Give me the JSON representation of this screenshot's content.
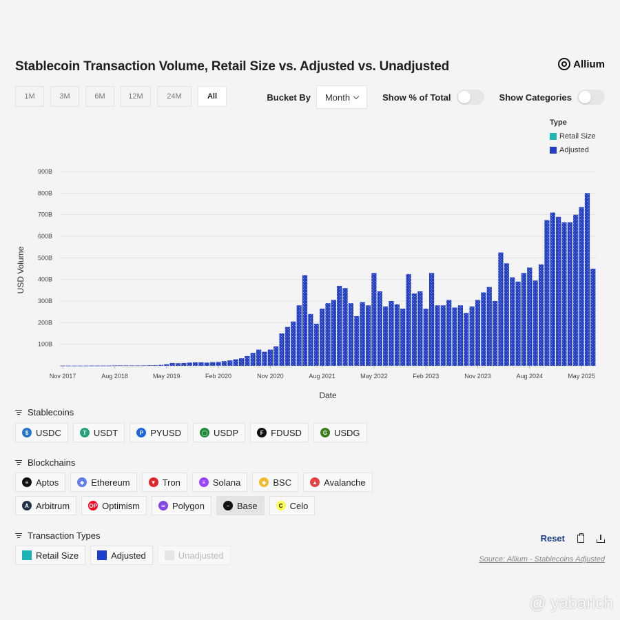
{
  "header": {
    "title": "Stablecoin Transaction Volume, Retail Size vs. Adjusted vs. Unadjusted",
    "brand": "Allium"
  },
  "ranges": [
    {
      "label": "1M",
      "selected": false
    },
    {
      "label": "3M",
      "selected": false
    },
    {
      "label": "6M",
      "selected": false
    },
    {
      "label": "12M",
      "selected": false
    },
    {
      "label": "24M",
      "selected": false
    },
    {
      "label": "All",
      "selected": true
    }
  ],
  "controls": {
    "bucket_label": "Bucket By",
    "bucket_value": "Month",
    "show_pct_label": "Show % of Total",
    "show_pct_on": false,
    "show_cat_label": "Show Categories",
    "show_cat_on": false
  },
  "legend": {
    "title": "Type",
    "items": [
      {
        "label": "Retail Size",
        "color": "#22b5b8"
      },
      {
        "label": "Adjusted",
        "color": "#2340c4"
      }
    ]
  },
  "chart_data": {
    "type": "bar",
    "xlabel": "Date",
    "ylabel": "USD Volume",
    "ylim": [
      0,
      900
    ],
    "y_ticks": [
      "100B",
      "200B",
      "300B",
      "400B",
      "500B",
      "600B",
      "700B",
      "800B",
      "900B"
    ],
    "x_tick_labels": [
      "Nov 2017",
      "Aug 2018",
      "May 2019",
      "Feb 2020",
      "Nov 2020",
      "Aug 2021",
      "May 2022",
      "Feb 2023",
      "Nov 2023",
      "Aug 2024",
      "May 2025"
    ],
    "x_tick_index": [
      0,
      9,
      18,
      27,
      36,
      45,
      54,
      63,
      72,
      81,
      90
    ],
    "start_month": "Nov 2017",
    "series": [
      {
        "name": "Adjusted",
        "color": "#2340c4",
        "values": [
          1,
          1,
          1,
          1,
          1,
          1,
          1,
          1,
          1,
          2,
          2,
          2,
          2,
          2,
          2,
          3,
          3,
          4,
          7,
          13,
          12,
          13,
          15,
          16,
          16,
          15,
          17,
          18,
          22,
          25,
          30,
          35,
          45,
          60,
          75,
          65,
          75,
          90,
          150,
          180,
          205,
          280,
          420,
          240,
          195,
          265,
          290,
          305,
          370,
          360,
          290,
          230,
          295,
          280,
          430,
          345,
          275,
          300,
          285,
          265,
          425,
          335,
          345,
          265,
          430,
          280,
          280,
          305,
          270,
          280,
          245,
          275,
          305,
          340,
          365,
          300,
          525,
          475,
          410,
          390,
          430,
          455,
          395,
          470,
          675,
          710,
          690,
          665,
          665,
          700,
          735,
          800,
          450
        ]
      },
      {
        "name": "Retail Size",
        "color": "#22b5b8",
        "values": [
          0,
          0,
          0,
          0,
          0,
          0,
          0,
          0,
          0,
          0,
          0,
          0,
          0,
          0,
          0,
          0,
          0,
          0,
          0,
          0,
          0,
          0,
          0,
          0,
          0,
          0,
          0,
          0,
          0,
          0,
          0,
          0,
          0,
          0,
          0,
          0,
          0,
          0,
          0,
          0,
          0,
          0,
          0,
          0,
          0,
          0,
          0,
          0,
          0,
          0,
          0,
          0,
          0,
          0,
          0,
          0,
          0,
          0,
          0,
          0,
          0,
          0,
          0,
          0,
          0,
          0,
          0,
          0,
          0,
          0,
          0,
          0,
          0,
          0,
          0,
          0,
          0,
          0,
          0,
          0,
          0,
          0,
          0,
          0,
          0,
          0,
          0,
          0,
          0,
          0,
          0,
          0,
          0
        ]
      }
    ],
    "grid": true,
    "legend_position": "top-right"
  },
  "filters": {
    "stablecoins": {
      "title": "Stablecoins",
      "items": [
        {
          "label": "USDC",
          "icon": "usdc-icon",
          "color": "#2775ca",
          "glyph": "$"
        },
        {
          "label": "USDT",
          "icon": "usdt-icon",
          "color": "#26a17b",
          "glyph": "T"
        },
        {
          "label": "PYUSD",
          "icon": "pyusd-icon",
          "color": "#1c66e0",
          "glyph": "P"
        },
        {
          "label": "USDP",
          "icon": "usdp-icon",
          "color": "#1f8a3a",
          "glyph": "◯"
        },
        {
          "label": "FDUSD",
          "icon": "fdusd-icon",
          "color": "#111111",
          "glyph": "F"
        },
        {
          "label": "USDG",
          "icon": "usdg-icon",
          "color": "#3a7d1e",
          "glyph": "G"
        }
      ]
    },
    "blockchains": {
      "title": "Blockchains",
      "row1": [
        {
          "label": "Aptos",
          "icon": "aptos-icon",
          "color": "#111111",
          "glyph": "≡"
        },
        {
          "label": "Ethereum",
          "icon": "ethereum-icon",
          "color": "#627eea",
          "glyph": "◆"
        },
        {
          "label": "Tron",
          "icon": "tron-icon",
          "color": "#e0262b",
          "glyph": "▼"
        },
        {
          "label": "Solana",
          "icon": "solana-icon",
          "color": "#9945ff",
          "glyph": "≡"
        },
        {
          "label": "BSC",
          "icon": "bsc-icon",
          "color": "#f3ba2f",
          "glyph": "◆"
        },
        {
          "label": "Avalanche",
          "icon": "avalanche-icon",
          "color": "#e84142",
          "glyph": "▲"
        }
      ],
      "row2": [
        {
          "label": "Arbitrum",
          "icon": "arbitrum-icon",
          "color": "#213147",
          "glyph": "A"
        },
        {
          "label": "Optimism",
          "icon": "optimism-icon",
          "color": "#ff0420",
          "glyph": "OP"
        },
        {
          "label": "Polygon",
          "icon": "polygon-icon",
          "color": "#8247e5",
          "glyph": "∞"
        },
        {
          "label": "Base",
          "icon": "base-icon",
          "color": "#111111",
          "glyph": "–",
          "active": true
        },
        {
          "label": "Celo",
          "icon": "celo-icon",
          "color": "#fcff52",
          "glyph": "C"
        }
      ]
    },
    "types": {
      "title": "Transaction Types",
      "items": [
        {
          "label": "Retail Size",
          "color": "#1ab3b8"
        },
        {
          "label": "Adjusted",
          "color": "#1c3ecf"
        },
        {
          "label": "Unadjusted",
          "color": "#e6e6e6",
          "muted": true
        }
      ]
    }
  },
  "actions": {
    "reset_label": "Reset",
    "source_text": "Source: Allium - Stablecoins Adjusted"
  },
  "watermark": "@ yabarich"
}
